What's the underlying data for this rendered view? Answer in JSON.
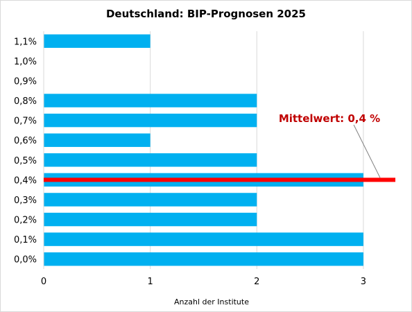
{
  "chart_data": {
    "type": "bar",
    "orientation": "horizontal",
    "title": "Deutschland: BIP-Prognosen 2025",
    "xlabel": "Anzahl der Institute",
    "ylabel": "",
    "categories": [
      "0,0%",
      "0,1%",
      "0,2%",
      "0,3%",
      "0,4%",
      "0,5%",
      "0,6%",
      "0,7%",
      "0,8%",
      "0,9%",
      "1,0%",
      "1,1%"
    ],
    "values": [
      3,
      3,
      2,
      2,
      3,
      2,
      1,
      2,
      2,
      0,
      0,
      1
    ],
    "xlim": [
      0,
      3.3
    ],
    "xticks": [
      0,
      1,
      2,
      3
    ],
    "grid": "vertical",
    "bar_color": "#00b0f0",
    "reference_line": {
      "category": "0,4%",
      "label": "Mittelwert: 0,4 %",
      "color": "#ff0000",
      "label_color": "#c00000"
    }
  }
}
